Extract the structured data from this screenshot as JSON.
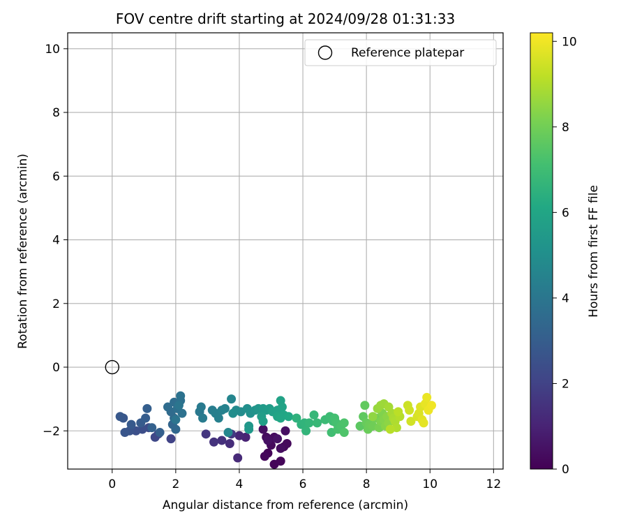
{
  "chart_data": {
    "type": "scatter",
    "title": "FOV centre drift starting at 2024/09/28 01:31:33",
    "xlabel": "Angular distance from reference (arcmin)",
    "ylabel": "Rotation from reference (arcmin)",
    "xlim": [
      -1.4,
      12.3
    ],
    "ylim": [
      -3.2,
      10.5
    ],
    "xticks": [
      0,
      2,
      4,
      6,
      8,
      10,
      12
    ],
    "yticks": [
      -2,
      0,
      2,
      4,
      6,
      8,
      10
    ],
    "grid": true,
    "legend": {
      "placement": "top-right",
      "entries": [
        "Reference platepar"
      ]
    },
    "reference_point": {
      "name": "Reference platepar",
      "x": 0.0,
      "y": 0.0
    },
    "colorbar": {
      "label": "Hours from first FF file",
      "colormap": "viridis",
      "range": [
        0,
        10.2
      ],
      "ticks": [
        0,
        2,
        4,
        6,
        8,
        10
      ]
    },
    "series": [
      {
        "points": [
          [
            4.9,
            -2.7,
            0.1
          ],
          [
            5.1,
            -3.05,
            0.12
          ],
          [
            5.3,
            -2.95,
            0.15
          ],
          [
            4.8,
            -2.8,
            0.18
          ],
          [
            5.4,
            -2.5,
            0.2
          ],
          [
            5.5,
            -2.4,
            0.22
          ],
          [
            5.0,
            -2.45,
            0.25
          ],
          [
            4.85,
            -2.2,
            0.3
          ],
          [
            5.1,
            -2.2,
            0.32
          ],
          [
            5.3,
            -2.55,
            0.35
          ],
          [
            4.75,
            -1.95,
            0.38
          ],
          [
            5.45,
            -2.0,
            0.4
          ],
          [
            4.9,
            -2.3,
            0.45
          ],
          [
            5.2,
            -2.25,
            0.5
          ],
          [
            4.2,
            -2.2,
            1.0
          ],
          [
            4.0,
            -2.15,
            1.1
          ],
          [
            3.95,
            -2.85,
            1.2
          ],
          [
            3.7,
            -2.4,
            1.3
          ],
          [
            3.45,
            -2.3,
            1.4
          ],
          [
            3.2,
            -2.35,
            1.5
          ],
          [
            2.95,
            -2.1,
            1.6
          ],
          [
            3.75,
            -2.1,
            1.7
          ],
          [
            1.85,
            -2.25,
            2.0
          ],
          [
            1.45,
            -2.1,
            2.1
          ],
          [
            1.35,
            -2.2,
            2.2
          ],
          [
            1.15,
            -1.9,
            2.3
          ],
          [
            0.95,
            -1.95,
            2.4
          ],
          [
            0.75,
            -2.0,
            2.5
          ],
          [
            0.55,
            -2.0,
            2.6
          ],
          [
            0.4,
            -2.05,
            2.7
          ],
          [
            0.35,
            -1.6,
            2.75
          ],
          [
            0.25,
            -1.55,
            2.8
          ],
          [
            0.6,
            -1.8,
            2.85
          ],
          [
            0.9,
            -1.75,
            2.9
          ],
          [
            1.05,
            -1.6,
            3.0
          ],
          [
            1.1,
            -1.3,
            3.05
          ],
          [
            1.5,
            -2.05,
            3.1
          ],
          [
            1.25,
            -1.9,
            3.15
          ],
          [
            1.9,
            -1.8,
            3.3
          ],
          [
            2.0,
            -1.95,
            3.4
          ],
          [
            1.95,
            -1.6,
            3.5
          ],
          [
            1.85,
            -1.4,
            3.55
          ],
          [
            1.75,
            -1.25,
            3.6
          ],
          [
            1.95,
            -1.1,
            3.65
          ],
          [
            2.05,
            -1.3,
            3.7
          ],
          [
            2.15,
            -1.05,
            3.75
          ],
          [
            2.2,
            -1.45,
            3.8
          ],
          [
            2.15,
            -0.9,
            3.85
          ],
          [
            2.0,
            -1.65,
            3.9
          ],
          [
            2.1,
            -1.2,
            3.95
          ],
          [
            2.75,
            -1.4,
            4.1
          ],
          [
            2.8,
            -1.25,
            4.15
          ],
          [
            2.85,
            -1.6,
            4.2
          ],
          [
            3.15,
            -1.35,
            4.3
          ],
          [
            3.25,
            -1.45,
            4.35
          ],
          [
            3.35,
            -1.6,
            4.4
          ],
          [
            3.45,
            -1.35,
            4.45
          ],
          [
            3.55,
            -1.3,
            4.5
          ],
          [
            3.75,
            -1.0,
            4.6
          ],
          [
            3.65,
            -2.05,
            4.65
          ],
          [
            3.9,
            -1.35,
            4.8
          ],
          [
            4.05,
            -1.4,
            4.9
          ],
          [
            3.8,
            -1.45,
            4.95
          ],
          [
            4.25,
            -1.3,
            5.0
          ],
          [
            4.35,
            -1.45,
            5.1
          ],
          [
            4.5,
            -1.35,
            5.2
          ],
          [
            4.6,
            -1.3,
            5.3
          ],
          [
            4.3,
            -1.85,
            5.35
          ],
          [
            4.3,
            -1.95,
            5.4
          ],
          [
            4.75,
            -1.3,
            5.5
          ],
          [
            4.85,
            -1.35,
            5.55
          ],
          [
            4.95,
            -1.3,
            5.6
          ],
          [
            4.7,
            -1.55,
            5.65
          ],
          [
            4.75,
            -1.7,
            5.7
          ],
          [
            5.05,
            -1.4,
            5.75
          ],
          [
            5.2,
            -1.35,
            5.8
          ],
          [
            5.3,
            -1.05,
            5.85
          ],
          [
            5.35,
            -1.25,
            5.9
          ],
          [
            5.2,
            -1.55,
            5.95
          ],
          [
            5.4,
            -1.5,
            6.0
          ],
          [
            5.3,
            -1.6,
            6.05
          ],
          [
            5.55,
            -1.55,
            6.1
          ],
          [
            5.8,
            -1.6,
            6.5
          ],
          [
            5.95,
            -1.8,
            6.55
          ],
          [
            6.05,
            -1.75,
            6.6
          ],
          [
            6.1,
            -2.0,
            6.65
          ],
          [
            6.2,
            -1.75,
            6.7
          ],
          [
            6.35,
            -1.5,
            6.75
          ],
          [
            6.45,
            -1.75,
            6.8
          ],
          [
            6.7,
            -1.65,
            6.9
          ],
          [
            6.85,
            -1.55,
            6.95
          ],
          [
            6.95,
            -1.7,
            7.0
          ],
          [
            6.9,
            -2.05,
            7.05
          ],
          [
            7.0,
            -1.6,
            7.1
          ],
          [
            7.05,
            -1.75,
            7.15
          ],
          [
            7.1,
            -1.95,
            7.2
          ],
          [
            7.2,
            -1.85,
            7.25
          ],
          [
            7.3,
            -1.75,
            7.3
          ],
          [
            7.3,
            -2.05,
            7.35
          ],
          [
            7.8,
            -1.85,
            7.6
          ],
          [
            7.9,
            -1.55,
            7.65
          ],
          [
            7.95,
            -1.2,
            7.7
          ],
          [
            8.0,
            -1.75,
            7.8
          ],
          [
            8.05,
            -1.95,
            7.85
          ],
          [
            8.1,
            -1.8,
            7.9
          ],
          [
            8.2,
            -1.85,
            7.95
          ],
          [
            8.3,
            -1.6,
            8.0
          ],
          [
            8.4,
            -1.9,
            8.1
          ],
          [
            8.45,
            -1.7,
            8.2
          ],
          [
            8.5,
            -1.45,
            8.25
          ],
          [
            8.55,
            -1.65,
            8.3
          ],
          [
            8.6,
            -1.85,
            8.35
          ],
          [
            8.65,
            -1.55,
            8.4
          ],
          [
            8.7,
            -1.75,
            8.45
          ],
          [
            8.2,
            -1.55,
            8.5
          ],
          [
            8.35,
            -1.3,
            8.6
          ],
          [
            8.45,
            -1.2,
            8.65
          ],
          [
            8.55,
            -1.15,
            8.7
          ],
          [
            8.7,
            -1.25,
            8.8
          ],
          [
            8.8,
            -1.45,
            8.85
          ],
          [
            8.85,
            -1.6,
            8.9
          ],
          [
            8.9,
            -1.7,
            8.95
          ],
          [
            8.95,
            -1.9,
            9.0
          ],
          [
            9.05,
            -1.55,
            9.05
          ],
          [
            8.75,
            -1.95,
            9.1
          ],
          [
            9.0,
            -1.4,
            9.15
          ],
          [
            9.3,
            -1.2,
            9.4
          ],
          [
            9.35,
            -1.35,
            9.45
          ],
          [
            9.4,
            -1.7,
            9.5
          ],
          [
            9.6,
            -1.55,
            9.6
          ],
          [
            9.65,
            -1.45,
            9.65
          ],
          [
            9.7,
            -1.25,
            9.7
          ],
          [
            9.75,
            -1.65,
            9.75
          ],
          [
            9.8,
            -1.75,
            9.8
          ],
          [
            9.85,
            -1.15,
            9.85
          ],
          [
            9.9,
            -0.95,
            9.9
          ],
          [
            9.95,
            -1.35,
            9.95
          ],
          [
            10.05,
            -1.2,
            10.0
          ]
        ]
      }
    ]
  }
}
